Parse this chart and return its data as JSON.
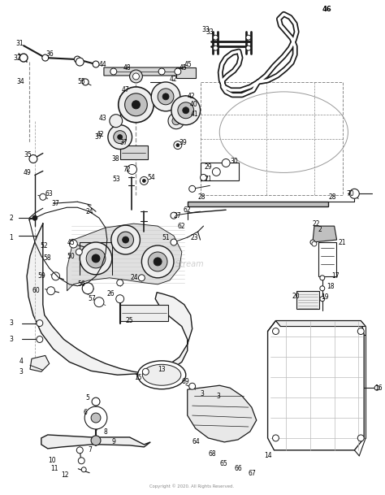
{
  "bg_color": "#ffffff",
  "fig_width": 4.74,
  "fig_height": 6.09,
  "dpi": 100,
  "line_color": "#1a1a1a",
  "gray_fill": "#d8d8d8",
  "light_fill": "#eeeeee",
  "medium_fill": "#c0c0c0",
  "watermark": "Stream",
  "footer": "Copyright © 2020. All Rights Reserved."
}
